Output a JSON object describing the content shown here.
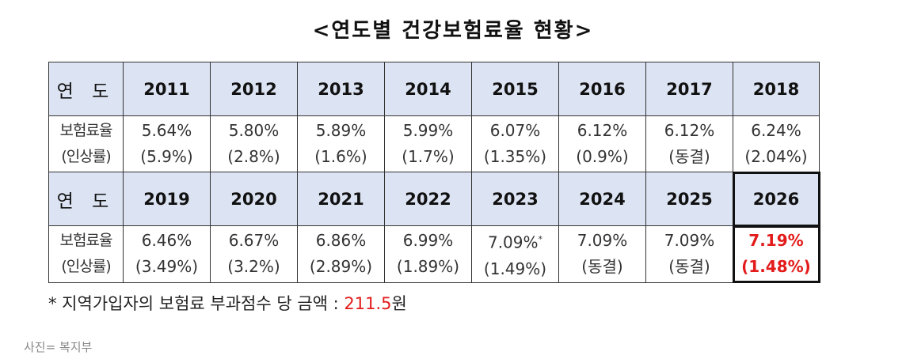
{
  "title": "<연도별 건강보험료율 현황>",
  "label_year": "연 도",
  "label_rate": "보험료율",
  "label_increase": "(인상률)",
  "row1": [
    {
      "year": "2011",
      "rate": "5.64%",
      "change": "(5.9%)"
    },
    {
      "year": "2012",
      "rate": "5.80%",
      "change": "(2.8%)"
    },
    {
      "year": "2013",
      "rate": "5.89%",
      "change": "(1.6%)"
    },
    {
      "year": "2014",
      "rate": "5.99%",
      "change": "(1.7%)"
    },
    {
      "year": "2015",
      "rate": "6.07%",
      "change": "(1.35%)"
    },
    {
      "year": "2016",
      "rate": "6.12%",
      "change": "(0.9%)"
    },
    {
      "year": "2017",
      "rate": "6.12%",
      "change": "(동결)"
    },
    {
      "year": "2018",
      "rate": "6.24%",
      "change": "(2.04%)"
    }
  ],
  "row2": [
    {
      "year": "2019",
      "rate": "6.46%",
      "change": "(3.49%)"
    },
    {
      "year": "2020",
      "rate": "6.67%",
      "change": "(3.2%)"
    },
    {
      "year": "2021",
      "rate": "6.86%",
      "change": "(2.89%)"
    },
    {
      "year": "2022",
      "rate": "6.99%",
      "change": "(1.89%)"
    },
    {
      "year": "2023",
      "rate": "7.09%",
      "change": "(1.49%)",
      "mark": "*"
    },
    {
      "year": "2024",
      "rate": "7.09%",
      "change": "(동결)"
    },
    {
      "year": "2025",
      "rate": "7.09%",
      "change": "(동결)"
    },
    {
      "year": "2026",
      "rate": "7.19%",
      "change": "(1.48%)"
    }
  ],
  "highlight_color": "#e31b1b",
  "header_bg": "#dce3f2",
  "note": {
    "prefix": "* 지역가입자의 보험료 부과점수 당 금액 : ",
    "amount_num": "211.5",
    "amount_unit": "원"
  },
  "credit": "사진= 복지부"
}
